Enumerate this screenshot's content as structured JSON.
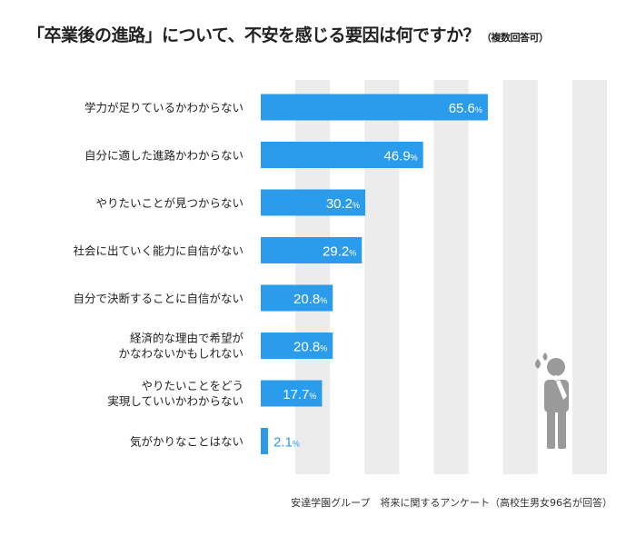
{
  "title": "「卒業後の進路」について、不安を感じる要因は何ですか？",
  "title_suffix": "（複数回答可）",
  "source": "安達学園グループ　将来に関するアンケート（高校生男女96名が回答）",
  "colors": {
    "bar": "#2b9cec",
    "label_inside": "#ffffff",
    "label_outside": "#2b9cec",
    "grid_band": "#ececec"
  },
  "chart_data": {
    "type": "bar",
    "orientation": "horizontal",
    "categories": [
      [
        "学力が足りているかわからない"
      ],
      [
        "自分に適した進路かわからない"
      ],
      [
        "やりたいことが見つからない"
      ],
      [
        "社会に出ていく能力に自信がない"
      ],
      [
        "自分で決断することに自信がない"
      ],
      [
        "経済的な理由で希望が",
        "かなわないかもしれない"
      ],
      [
        "やりたいことをどう",
        "実現していいかわからない"
      ],
      [
        "気がかりなことはない"
      ]
    ],
    "values": [
      65.6,
      46.9,
      30.2,
      29.2,
      20.8,
      20.8,
      17.7,
      2.1
    ],
    "value_suffix": "%",
    "xlim": [
      0,
      100
    ],
    "grid": "alternating vertical bands",
    "xlabel": "",
    "ylabel": ""
  },
  "illustration": {
    "icon": "worried-person-icon"
  }
}
